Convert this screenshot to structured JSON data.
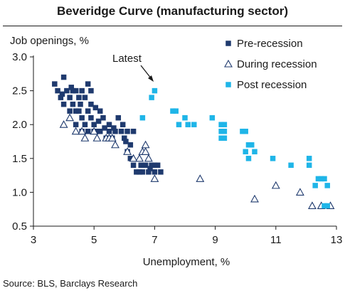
{
  "chart_data": {
    "type": "scatter",
    "title": "Beveridge Curve (manufacturing sector)",
    "ylabel": "Job openings, %",
    "xlabel": "Unemployment, %",
    "xlim": [
      3,
      13
    ],
    "ylim": [
      0.5,
      3.0
    ],
    "xticks": [
      "3",
      "5",
      "7",
      "9",
      "11",
      "13"
    ],
    "yticks": [
      "0.5",
      "1.0",
      "1.5",
      "2.0",
      "2.5",
      "3.0"
    ],
    "legend_position": "top-right",
    "annotation": {
      "text": "Latest",
      "points_to": [
        6.9,
        2.45
      ]
    },
    "series": [
      {
        "name": "Pre-recession",
        "marker": "filled-square",
        "color": "#1f3a6e",
        "points": [
          [
            3.7,
            2.6
          ],
          [
            3.8,
            2.5
          ],
          [
            3.9,
            2.4
          ],
          [
            4.0,
            2.7
          ],
          [
            4.0,
            2.3
          ],
          [
            4.1,
            2.5
          ],
          [
            4.2,
            2.4
          ],
          [
            4.2,
            2.2
          ],
          [
            4.3,
            2.5
          ],
          [
            4.3,
            2.3
          ],
          [
            4.4,
            2.5
          ],
          [
            4.4,
            2.2
          ],
          [
            4.4,
            2.0
          ],
          [
            4.5,
            2.4
          ],
          [
            4.5,
            2.2
          ],
          [
            4.6,
            2.5
          ],
          [
            4.6,
            2.1
          ],
          [
            4.6,
            1.9
          ],
          [
            4.7,
            2.4
          ],
          [
            4.7,
            2.0
          ],
          [
            4.8,
            2.6
          ],
          [
            4.8,
            2.2
          ],
          [
            4.8,
            1.9
          ],
          [
            4.9,
            2.5
          ],
          [
            4.9,
            2.3
          ],
          [
            4.9,
            2.1
          ],
          [
            5.0,
            2.0
          ],
          [
            5.0,
            1.9
          ],
          [
            5.1,
            1.9
          ],
          [
            5.2,
            2.2
          ],
          [
            5.2,
            1.9
          ],
          [
            5.3,
            2.1
          ],
          [
            5.4,
            1.8
          ],
          [
            5.5,
            2.0
          ],
          [
            5.5,
            1.9
          ],
          [
            5.6,
            1.8
          ],
          [
            5.7,
            1.9
          ],
          [
            5.8,
            2.1
          ],
          [
            5.9,
            1.9
          ],
          [
            6.0,
            1.8
          ],
          [
            6.1,
            1.9
          ],
          [
            6.1,
            1.6
          ],
          [
            6.2,
            1.5
          ],
          [
            6.2,
            1.7
          ],
          [
            6.3,
            1.9
          ],
          [
            6.3,
            1.4
          ],
          [
            6.4,
            1.3
          ],
          [
            6.5,
            1.3
          ],
          [
            6.6,
            1.3
          ],
          [
            6.7,
            1.4
          ],
          [
            6.8,
            1.3
          ],
          [
            6.9,
            1.4
          ],
          [
            7.0,
            1.3
          ],
          [
            7.0,
            1.4
          ],
          [
            7.1,
            1.4
          ],
          [
            7.2,
            1.3
          ],
          [
            3.95,
            2.45
          ],
          [
            4.25,
            2.55
          ],
          [
            4.55,
            2.3
          ],
          [
            5.05,
            2.25
          ],
          [
            5.15,
            2.05
          ],
          [
            5.35,
            1.95
          ],
          [
            5.65,
            1.95
          ],
          [
            5.95,
            2.0
          ],
          [
            6.05,
            1.75
          ],
          [
            6.55,
            1.4
          ],
          [
            6.85,
            1.35
          ]
        ]
      },
      {
        "name": "During recession",
        "marker": "hollow-triangle",
        "color": "#1f3a6e",
        "points": [
          [
            4.0,
            2.0
          ],
          [
            4.2,
            2.1
          ],
          [
            4.4,
            1.9
          ],
          [
            4.6,
            1.9
          ],
          [
            4.7,
            1.8
          ],
          [
            5.0,
            1.9
          ],
          [
            5.1,
            1.8
          ],
          [
            5.4,
            1.8
          ],
          [
            5.5,
            1.8
          ],
          [
            5.6,
            1.8
          ],
          [
            5.7,
            1.7
          ],
          [
            6.1,
            1.6
          ],
          [
            6.3,
            1.5
          ],
          [
            6.5,
            1.5
          ],
          [
            6.6,
            1.6
          ],
          [
            6.7,
            1.7
          ],
          [
            6.7,
            1.6
          ],
          [
            6.8,
            1.5
          ],
          [
            7.0,
            1.2
          ],
          [
            8.5,
            1.2
          ],
          [
            10.3,
            0.9
          ],
          [
            11.0,
            1.1
          ],
          [
            11.8,
            1.0
          ],
          [
            12.2,
            0.8
          ],
          [
            12.5,
            0.8
          ],
          [
            12.8,
            0.8
          ]
        ]
      },
      {
        "name": "Post recession",
        "marker": "filled-square",
        "color": "#1fb5e8",
        "points": [
          [
            6.9,
            2.4
          ],
          [
            7.0,
            2.5
          ],
          [
            6.6,
            2.1
          ],
          [
            7.6,
            2.2
          ],
          [
            7.7,
            2.2
          ],
          [
            7.8,
            2.0
          ],
          [
            8.0,
            2.1
          ],
          [
            8.1,
            2.0
          ],
          [
            8.3,
            2.0
          ],
          [
            8.9,
            2.1
          ],
          [
            9.2,
            2.0
          ],
          [
            9.2,
            1.9
          ],
          [
            9.2,
            1.8
          ],
          [
            9.3,
            2.0
          ],
          [
            9.3,
            1.9
          ],
          [
            9.3,
            1.8
          ],
          [
            9.9,
            1.9
          ],
          [
            10.0,
            1.9
          ],
          [
            10.0,
            1.6
          ],
          [
            10.1,
            1.7
          ],
          [
            10.1,
            1.5
          ],
          [
            10.2,
            1.7
          ],
          [
            10.3,
            1.6
          ],
          [
            10.9,
            1.5
          ],
          [
            11.5,
            1.4
          ],
          [
            12.1,
            1.5
          ],
          [
            12.1,
            1.4
          ],
          [
            12.3,
            1.1
          ],
          [
            12.4,
            1.2
          ],
          [
            12.5,
            1.2
          ],
          [
            12.6,
            1.2
          ],
          [
            12.7,
            1.1
          ],
          [
            12.6,
            0.8
          ],
          [
            12.7,
            0.8
          ]
        ]
      }
    ]
  },
  "source_note": "Source: BLS, Barclays Research"
}
